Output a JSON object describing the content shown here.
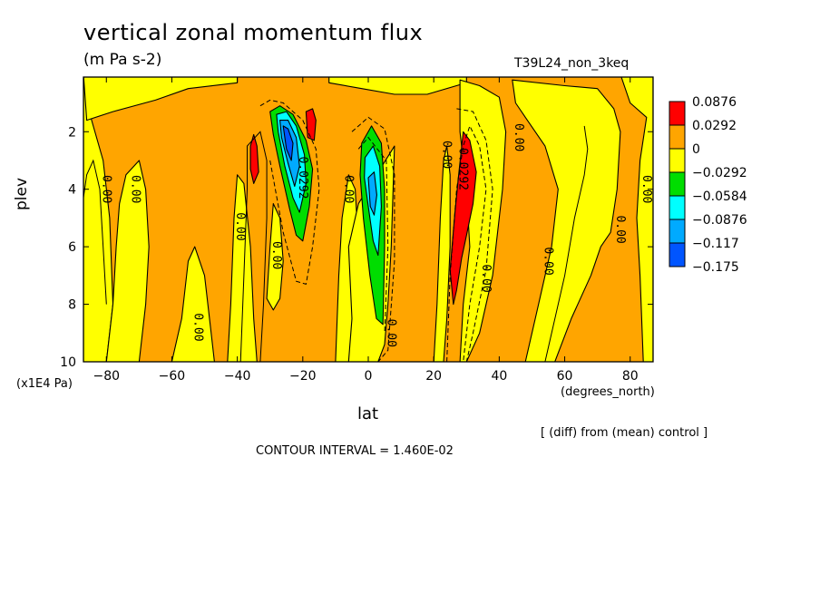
{
  "chart_data": {
    "type": "heatmap",
    "title": "vertical zonal momentum flux",
    "units": "(m Pa s-2)",
    "run_id": "T39L24_non_3keq",
    "xlabel": "lat",
    "xunit": "(degrees_north)",
    "ylabel": "plev",
    "yunit": "(x1E4 Pa)",
    "xlim": [
      -87,
      87
    ],
    "ylim": [
      10,
      0.1
    ],
    "x_ticks": [
      "-80",
      "-60",
      "-40",
      "-20",
      "0",
      "20",
      "40",
      "60",
      "80"
    ],
    "y_ticks": [
      "2",
      "4",
      "6",
      "8",
      "10"
    ],
    "note": "[ (diff) from (mean) control ]",
    "contour_interval_text": "CONTOUR INTERVAL = 1.460E-02",
    "legend": {
      "levels": [
        "0.0876",
        "0.0292",
        "0",
        "−0.0292",
        "−0.0584",
        "−0.0876",
        "−0.117",
        "−0.175"
      ],
      "colors": [
        "#ff0000",
        "#ffa500",
        "#ffff00",
        "#00dd00",
        "#00ffff",
        "#00aaff",
        "#0055ff"
      ]
    },
    "contour_labels": [
      {
        "text": "0.00",
        "lat": -80,
        "p": 4.0
      },
      {
        "text": "0.00",
        "lat": -71,
        "p": 4.0
      },
      {
        "text": "0.00",
        "lat": -52,
        "p": 8.8
      },
      {
        "text": "0.00",
        "lat": -39,
        "p": 5.3
      },
      {
        "text": "0.00",
        "lat": -28,
        "p": 6.3
      },
      {
        "text": "0.0292",
        "lat": -20,
        "p": 3.6
      },
      {
        "text": "0.00",
        "lat": -6,
        "p": 4.0
      },
      {
        "text": "0.00",
        "lat": 7,
        "p": 9.0
      },
      {
        "text": "0.0292",
        "lat": 29,
        "p": 3.3
      },
      {
        "text": "0.00",
        "lat": 24,
        "p": 2.8
      },
      {
        "text": "0.00",
        "lat": 36,
        "p": 7.1
      },
      {
        "text": "0.00",
        "lat": 46,
        "p": 2.2
      },
      {
        "text": "0.00",
        "lat": 55,
        "p": 6.5
      },
      {
        "text": "0.00",
        "lat": 77,
        "p": 5.4
      },
      {
        "text": "0.00",
        "lat": 85,
        "p": 4.0
      }
    ]
  }
}
